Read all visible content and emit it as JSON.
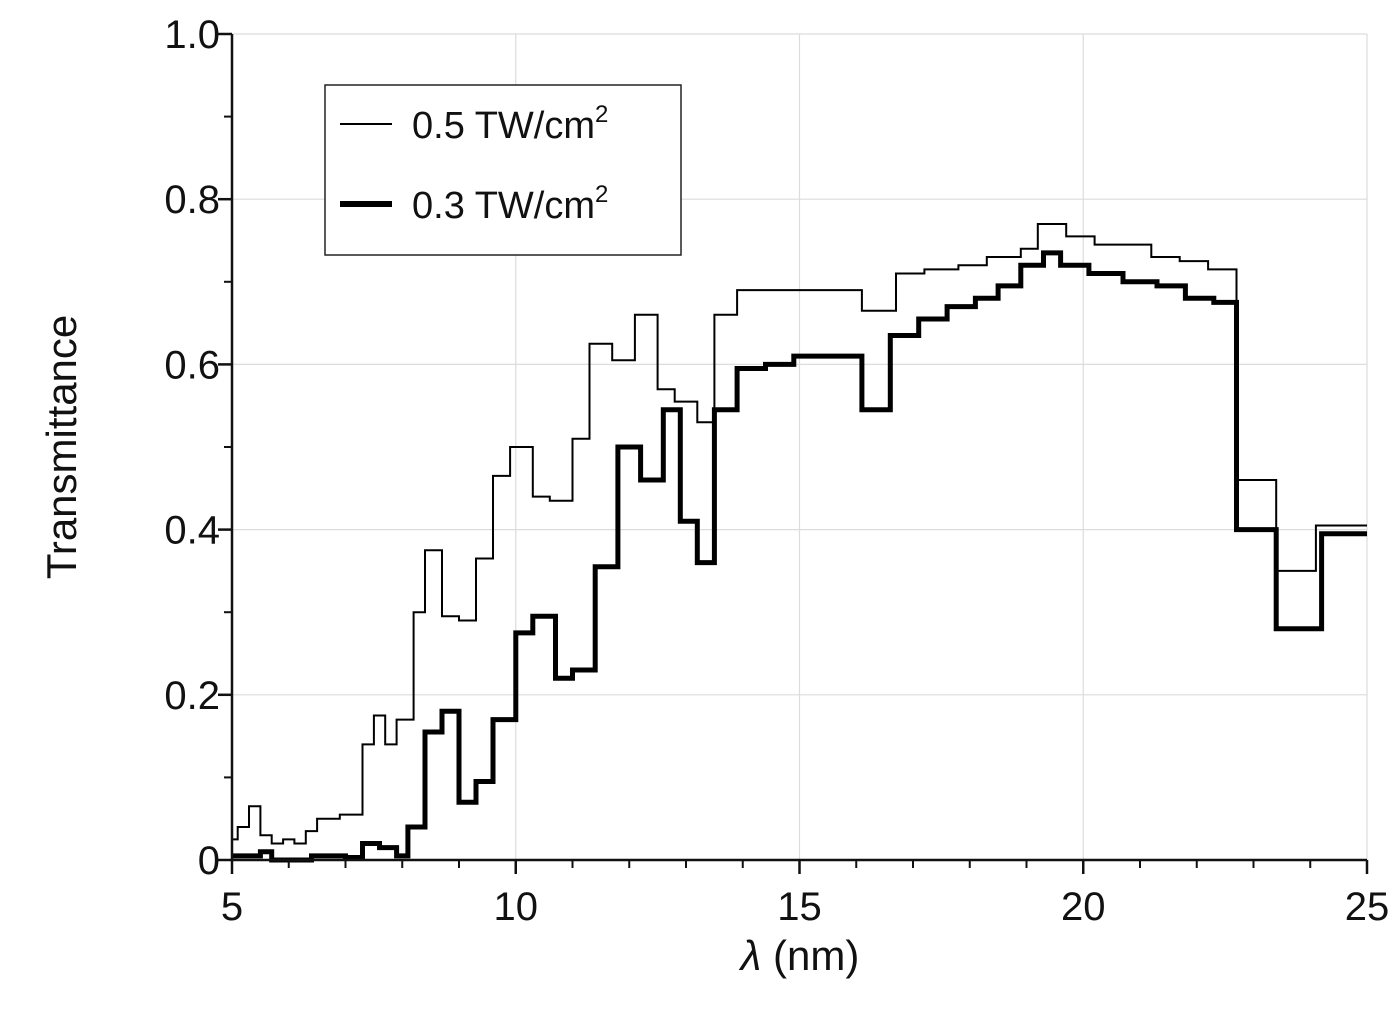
{
  "chart_data": {
    "type": "line",
    "title": "",
    "xlabel_var": "λ",
    "xlabel_unit": " (nm)",
    "ylabel": "Transmittance",
    "xlim": [
      5,
      25
    ],
    "ylim": [
      0,
      1.0
    ],
    "x_ticks": [
      5,
      10,
      15,
      20,
      25
    ],
    "x_tick_labels": [
      "5",
      "10",
      "15",
      "20",
      "25"
    ],
    "y_ticks": [
      0,
      0.2,
      0.4,
      0.6,
      0.8,
      1.0
    ],
    "y_tick_labels": [
      "0",
      "0.2",
      "0.4",
      "0.6",
      "0.8",
      "1.0"
    ],
    "grid": true,
    "step": true,
    "legend_position": "top-left",
    "legend": {
      "entries": [
        {
          "base": "0.5 TW/cm",
          "sup": "2"
        },
        {
          "base": "0.3 TW/cm",
          "sup": "2"
        }
      ]
    },
    "series": [
      {
        "name": "0.5 TW/cm²",
        "line": "thin",
        "color": "#000000",
        "x": [
          5.0,
          5.1,
          5.3,
          5.5,
          5.7,
          5.9,
          6.1,
          6.3,
          6.5,
          6.9,
          7.3,
          7.5,
          7.7,
          7.9,
          8.2,
          8.4,
          8.7,
          9.0,
          9.3,
          9.6,
          9.9,
          10.3,
          10.6,
          11.0,
          11.3,
          11.7,
          12.1,
          12.5,
          12.8,
          13.2,
          13.5,
          13.9,
          14.5,
          15.0,
          15.6,
          16.1,
          16.7,
          17.2,
          17.8,
          18.3,
          18.9,
          19.2,
          19.7,
          20.2,
          20.7,
          21.2,
          21.7,
          22.2,
          22.7,
          23.4,
          24.1,
          24.9
        ],
        "y": [
          0.025,
          0.04,
          0.065,
          0.03,
          0.02,
          0.025,
          0.02,
          0.035,
          0.05,
          0.055,
          0.14,
          0.175,
          0.14,
          0.17,
          0.3,
          0.375,
          0.295,
          0.29,
          0.365,
          0.465,
          0.5,
          0.44,
          0.435,
          0.51,
          0.625,
          0.605,
          0.66,
          0.57,
          0.555,
          0.53,
          0.66,
          0.69,
          0.69,
          0.69,
          0.69,
          0.665,
          0.71,
          0.715,
          0.72,
          0.73,
          0.74,
          0.77,
          0.755,
          0.745,
          0.745,
          0.73,
          0.725,
          0.715,
          0.46,
          0.35,
          0.405,
          0.405
        ]
      },
      {
        "name": "0.3 TW/cm²",
        "line": "thick",
        "color": "#000000",
        "x": [
          5.0,
          5.5,
          5.7,
          6.4,
          7.0,
          7.3,
          7.6,
          7.9,
          8.1,
          8.4,
          8.7,
          9.0,
          9.3,
          9.6,
          10.0,
          10.3,
          10.7,
          11.0,
          11.4,
          11.8,
          12.2,
          12.6,
          12.9,
          13.2,
          13.5,
          13.9,
          14.4,
          14.9,
          15.3,
          15.9,
          16.1,
          16.6,
          17.1,
          17.6,
          18.1,
          18.5,
          18.9,
          19.3,
          19.6,
          20.1,
          20.7,
          21.3,
          21.8,
          22.3,
          22.7,
          23.4,
          24.2,
          24.9
        ],
        "y": [
          0.005,
          0.01,
          0.0,
          0.005,
          0.003,
          0.02,
          0.015,
          0.005,
          0.04,
          0.155,
          0.18,
          0.07,
          0.095,
          0.17,
          0.275,
          0.295,
          0.22,
          0.23,
          0.355,
          0.5,
          0.46,
          0.545,
          0.41,
          0.36,
          0.545,
          0.595,
          0.6,
          0.61,
          0.61,
          0.61,
          0.545,
          0.635,
          0.655,
          0.67,
          0.68,
          0.695,
          0.72,
          0.735,
          0.72,
          0.71,
          0.7,
          0.695,
          0.68,
          0.675,
          0.4,
          0.28,
          0.395,
          0.395
        ]
      }
    ]
  }
}
